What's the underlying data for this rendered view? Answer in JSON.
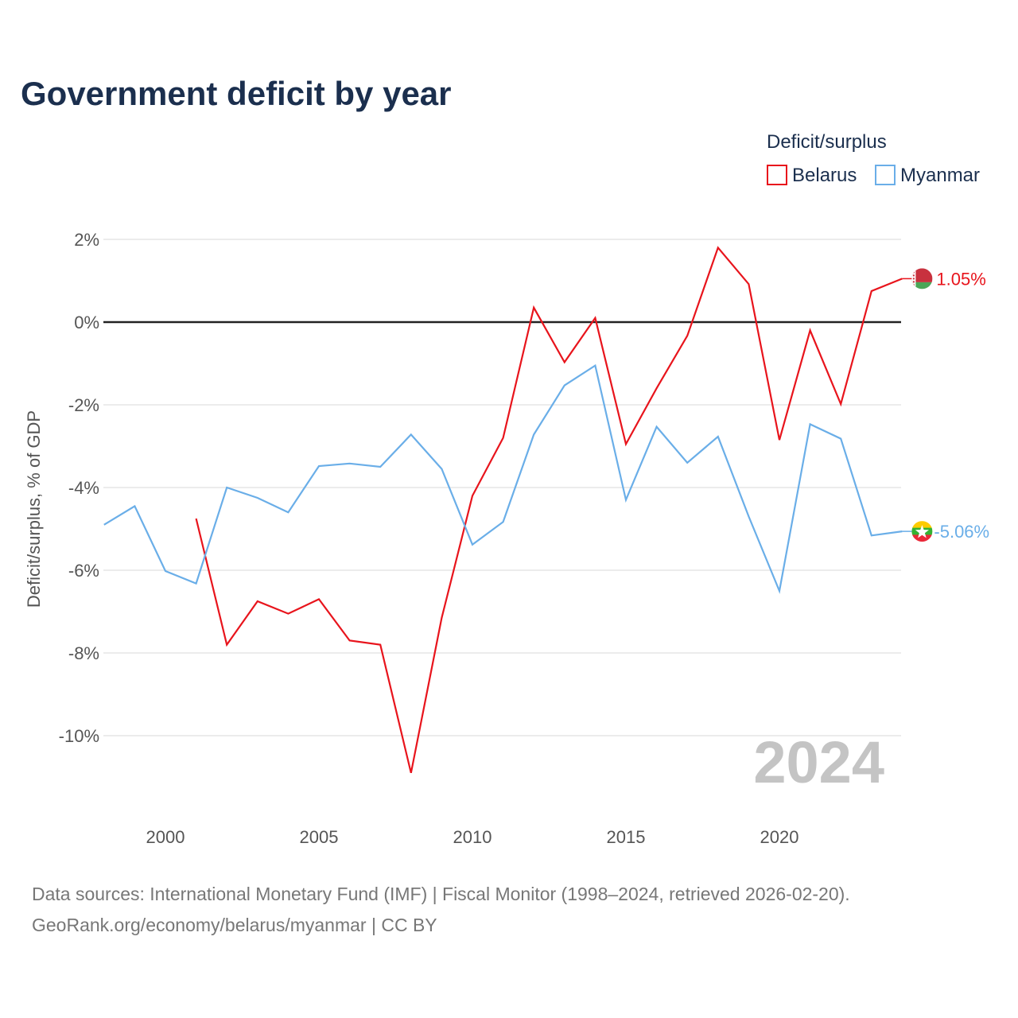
{
  "title": "Government deficit by year",
  "legend": {
    "title": "Deficit/surplus",
    "items": [
      {
        "name": "Belarus",
        "color": "#e8141c"
      },
      {
        "name": "Myanmar",
        "color": "#6aaee8"
      }
    ]
  },
  "watermark_year": "2024",
  "end_labels": {
    "belarus": "1.05%",
    "myanmar": "-5.06%"
  },
  "footer": {
    "line1": "Data sources: International Monetary Fund (IMF) | Fiscal Monitor (1998–2024, retrieved 2026-02-20).",
    "line2": "GeoRank.org/economy/belarus/myanmar | CC BY"
  },
  "chart_data": {
    "type": "line",
    "title": "Government deficit by year",
    "xlabel": "",
    "ylabel": "Deficit/surplus, % of GDP",
    "xlim": [
      1998,
      2024
    ],
    "ylim": [
      -11.5,
      2.5
    ],
    "x_ticks": [
      2000,
      2005,
      2010,
      2015,
      2020
    ],
    "x_tick_labels": [
      "2000",
      "2005",
      "2010",
      "2015",
      "2020"
    ],
    "y_ticks": [
      2,
      0,
      -2,
      -4,
      -6,
      -8,
      -10
    ],
    "y_tick_labels": [
      "2%",
      "0%",
      "-2%",
      "-4%",
      "-6%",
      "-8%",
      "-10%"
    ],
    "zero_line": true,
    "grid": true,
    "legend_position": "top-right",
    "series": [
      {
        "name": "Belarus",
        "color": "#e8141c",
        "x": [
          2001,
          2002,
          2003,
          2004,
          2005,
          2006,
          2007,
          2008,
          2009,
          2010,
          2011,
          2012,
          2013,
          2014,
          2015,
          2016,
          2017,
          2018,
          2019,
          2020,
          2021,
          2022,
          2023,
          2024
        ],
        "values": [
          -4.75,
          -7.8,
          -6.75,
          -7.05,
          -6.7,
          -7.7,
          -7.8,
          -10.9,
          -7.15,
          -4.2,
          -2.8,
          0.35,
          -0.97,
          0.1,
          -2.95,
          -1.6,
          -0.33,
          1.8,
          0.92,
          -2.85,
          -0.2,
          -1.98,
          0.75,
          1.05
        ]
      },
      {
        "name": "Myanmar",
        "color": "#6aaee8",
        "x": [
          1998,
          1999,
          2000,
          2001,
          2002,
          2003,
          2004,
          2005,
          2006,
          2007,
          2008,
          2009,
          2010,
          2011,
          2012,
          2013,
          2014,
          2015,
          2016,
          2017,
          2018,
          2019,
          2020,
          2021,
          2022,
          2023,
          2024
        ],
        "values": [
          -4.9,
          -4.45,
          -6.02,
          -6.32,
          -4.0,
          -4.25,
          -4.6,
          -3.48,
          -3.42,
          -3.5,
          -2.72,
          -3.55,
          -5.38,
          -4.83,
          -2.72,
          -1.53,
          -1.05,
          -4.3,
          -2.53,
          -3.4,
          -2.77,
          -4.7,
          -6.5,
          -2.47,
          -2.82,
          -5.16,
          -5.06
        ]
      }
    ]
  }
}
